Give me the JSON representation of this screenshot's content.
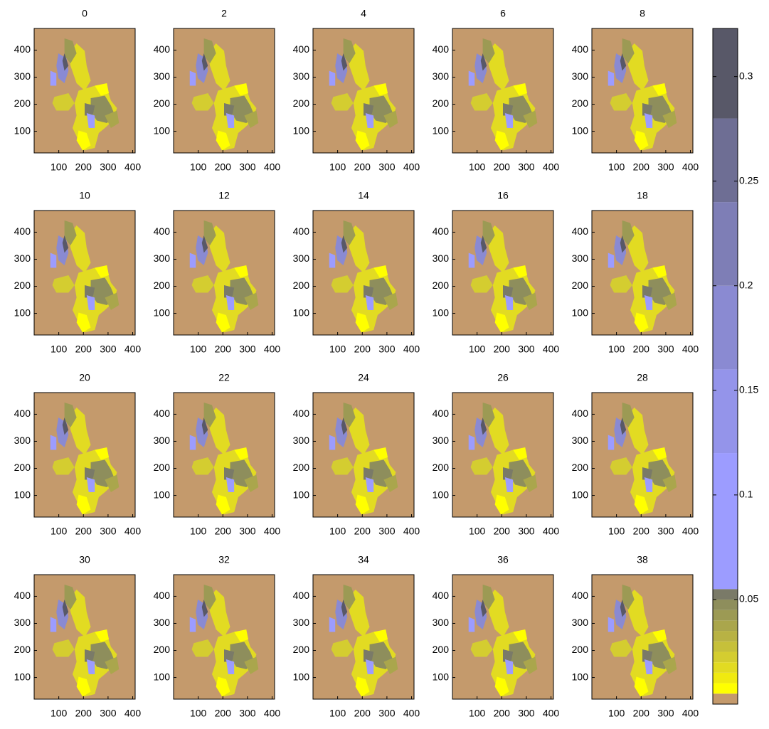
{
  "chart_data": {
    "type": "map-grid",
    "panels": [
      "0",
      "2",
      "4",
      "6",
      "8",
      "10",
      "12",
      "14",
      "16",
      "18",
      "20",
      "22",
      "24",
      "26",
      "28",
      "30",
      "32",
      "34",
      "36",
      "38"
    ],
    "xlim": [
      0,
      410
    ],
    "ylim": [
      20,
      480
    ],
    "xticks": [
      100,
      200,
      300,
      400
    ],
    "yticks": [
      100,
      200,
      300,
      400
    ],
    "background_color": "#c49a6c",
    "colorbar": {
      "lim": [
        0,
        0.323
      ],
      "ticks": [
        0.05,
        0.1,
        0.15,
        0.2,
        0.25,
        0.3
      ],
      "bands": [
        {
          "lo": 0,
          "hi": 0.005,
          "color": "#c49a6c"
        },
        {
          "lo": 0.005,
          "hi": 0.01,
          "color": "#ffff00"
        },
        {
          "lo": 0.01,
          "hi": 0.015,
          "color": "#f0ea10"
        },
        {
          "lo": 0.015,
          "hi": 0.02,
          "color": "#e2db22"
        },
        {
          "lo": 0.02,
          "hi": 0.025,
          "color": "#d4cd30"
        },
        {
          "lo": 0.025,
          "hi": 0.03,
          "color": "#c6c03a"
        },
        {
          "lo": 0.03,
          "hi": 0.035,
          "color": "#b8b244"
        },
        {
          "lo": 0.035,
          "hi": 0.04,
          "color": "#aaa64c"
        },
        {
          "lo": 0.04,
          "hi": 0.045,
          "color": "#9c9a54"
        },
        {
          "lo": 0.045,
          "hi": 0.05,
          "color": "#8e8e5c"
        },
        {
          "lo": 0.05,
          "hi": 0.055,
          "color": "#7a7a68"
        },
        {
          "lo": 0.055,
          "hi": 0.12,
          "color": "#9c9cff"
        },
        {
          "lo": 0.12,
          "hi": 0.16,
          "color": "#9494ea"
        },
        {
          "lo": 0.16,
          "hi": 0.2,
          "color": "#8a8ad2"
        },
        {
          "lo": 0.2,
          "hi": 0.24,
          "color": "#7e7eb6"
        },
        {
          "lo": 0.24,
          "hi": 0.28,
          "color": "#6e6e94"
        },
        {
          "lo": 0.28,
          "hi": 0.323,
          "color": "#585868"
        }
      ]
    }
  }
}
